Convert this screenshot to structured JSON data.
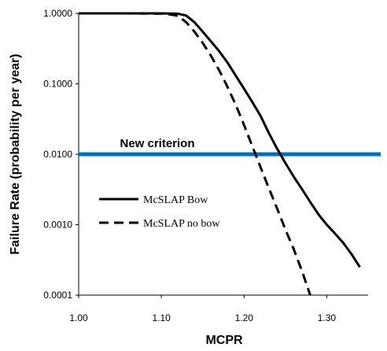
{
  "chart_data": {
    "type": "line",
    "title": "",
    "xlabel": "MCPR",
    "ylabel": "Failure Rate (probability per year)",
    "xlim": [
      1.0,
      1.35
    ],
    "ylim": [
      0.0001,
      1.0
    ],
    "yscale": "log",
    "grid": false,
    "legend_position": "center-left",
    "x_ticks": [
      1.0,
      1.1,
      1.2,
      1.3
    ],
    "x_tick_labels": [
      "1.00",
      "1.10",
      "1.20",
      "1.30"
    ],
    "y_ticks": [
      1.0,
      0.1,
      0.01,
      0.001,
      0.0001
    ],
    "y_tick_labels": [
      "1.0000",
      "0.1000",
      "0.0100",
      "0.0010",
      "0.0001"
    ],
    "series": [
      {
        "name": "McSLAP Bow",
        "style": "solid",
        "color": "#000000",
        "x": [
          1.0,
          1.05,
          1.1,
          1.12,
          1.13,
          1.14,
          1.15,
          1.16,
          1.17,
          1.18,
          1.19,
          1.2,
          1.21,
          1.22,
          1.23,
          1.24,
          1.25,
          1.26,
          1.27,
          1.28,
          1.29,
          1.3,
          1.31,
          1.32,
          1.33,
          1.34
        ],
        "y": [
          1.0,
          1.0,
          1.0,
          0.99,
          0.93,
          0.75,
          0.55,
          0.4,
          0.29,
          0.2,
          0.13,
          0.085,
          0.055,
          0.035,
          0.02,
          0.012,
          0.0075,
          0.0048,
          0.0032,
          0.0021,
          0.0014,
          0.001,
          0.00075,
          0.00055,
          0.00038,
          0.00025
        ]
      },
      {
        "name": "McSLAP no bow",
        "style": "dashed",
        "color": "#000000",
        "x": [
          1.0,
          1.05,
          1.1,
          1.11,
          1.12,
          1.13,
          1.14,
          1.15,
          1.16,
          1.17,
          1.18,
          1.19,
          1.2,
          1.21,
          1.22,
          1.23,
          1.24,
          1.25,
          1.26,
          1.27,
          1.28
        ],
        "y": [
          1.0,
          1.0,
          0.99,
          0.97,
          0.92,
          0.75,
          0.55,
          0.38,
          0.25,
          0.155,
          0.09,
          0.05,
          0.026,
          0.013,
          0.0065,
          0.0033,
          0.0017,
          0.00085,
          0.00045,
          0.00022,
          0.0001
        ]
      }
    ],
    "reference_lines": [
      {
        "label": "New criterion",
        "y": 0.01,
        "color": "#0070C0"
      }
    ]
  }
}
